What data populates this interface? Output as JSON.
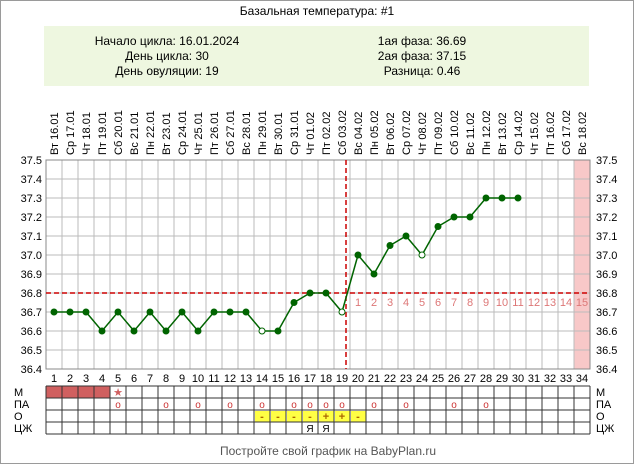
{
  "title": "Базальная температура: #1",
  "info": {
    "cycle_start": "Начало цикла: 16.01.2024",
    "cycle_day": "День цикла: 30",
    "ovulation_day": "День овуляции: 19",
    "phase1": "1ая фаза: 36.69",
    "phase2": "2ая фаза: 37.15",
    "difference": "Разница: 0.46"
  },
  "footer": "Постройте свой график на BabyPlan.ru",
  "colors": {
    "line": "#006400",
    "marker": "#006400",
    "ovulation_line": "#cc0000",
    "coverline": "#cc0000",
    "phase2_numbers": "#dd7777",
    "highlight_column": "#f8c8c8",
    "info_bg": "#eef7e0",
    "menses": "#d06060",
    "mucus_bg": "#ffff44",
    "grid": "#bbbbbb"
  },
  "chart_data": {
    "type": "line",
    "ylim": [
      36.4,
      37.5
    ],
    "yticks": [
      "36.4",
      "36.5",
      "36.6",
      "36.7",
      "36.8",
      "36.9",
      "37.0",
      "37.1",
      "37.2",
      "37.3",
      "37.4",
      "37.5"
    ],
    "coverline": 36.8,
    "ovulation_day": 19,
    "days": [
      1,
      2,
      3,
      4,
      5,
      6,
      7,
      8,
      9,
      10,
      11,
      12,
      13,
      14,
      15,
      16,
      17,
      18,
      19,
      20,
      21,
      22,
      23,
      24,
      25,
      26,
      27,
      28,
      29,
      30,
      31,
      32,
      33,
      34
    ],
    "dates": [
      "Вт 16.01",
      "Ср 17.01",
      "Чт 18.01",
      "Пт 19.01",
      "Сб 20.01",
      "Вс 21.01",
      "Пн 22.01",
      "Вт 23.01",
      "Ср 24.01",
      "Чт 25.01",
      "Пт 26.01",
      "Сб 27.01",
      "Вс 28.01",
      "Пн 29.01",
      "Вт 30.01",
      "Ср 31.01",
      "Чт 01.02",
      "Пт 02.02",
      "Сб 03.02",
      "Вс 04.02",
      "Пн 05.02",
      "Вт 06.02",
      "Ср 07.02",
      "Чт 08.02",
      "Пт 09.02",
      "Сб 10.02",
      "Вс 11.02",
      "Пн 12.02",
      "Вт 13.02",
      "Ср 14.02",
      "Чт 15.02",
      "Пт 16.02",
      "Сб 17.02",
      "Вс 18.02"
    ],
    "temperatures": [
      36.7,
      36.7,
      36.7,
      36.6,
      36.7,
      36.6,
      36.7,
      36.6,
      36.7,
      36.6,
      36.7,
      36.7,
      36.7,
      36.6,
      36.6,
      36.75,
      36.8,
      36.8,
      36.7,
      37.0,
      36.9,
      37.05,
      37.1,
      37.0,
      37.15,
      37.2,
      37.2,
      37.3,
      37.3,
      37.3
    ],
    "open_markers": [
      14,
      19,
      24
    ],
    "highlight_day": 34,
    "phase2_labels": [
      "1",
      "2",
      "3",
      "4",
      "5",
      "6",
      "7",
      "8",
      "9",
      "10",
      "11",
      "12",
      "13",
      "14",
      "15"
    ],
    "phase2_start_day": 20,
    "rows": {
      "labels": [
        "М",
        "ПА",
        "О",
        "ЦЖ"
      ],
      "menses_days": [
        1,
        2,
        3,
        4
      ],
      "menses_star_day": 5,
      "sex_days": [
        5,
        8,
        10,
        12,
        14,
        16,
        17,
        18,
        19,
        21,
        23,
        26,
        28
      ],
      "sex_symbol": "o",
      "ovulation_tests": [
        {
          "day": 14,
          "mark": "-"
        },
        {
          "day": 15,
          "mark": "-"
        },
        {
          "day": 16,
          "mark": "-"
        },
        {
          "day": 17,
          "mark": "-"
        },
        {
          "day": 18,
          "mark": "+"
        },
        {
          "day": 19,
          "mark": "+"
        },
        {
          "day": 20,
          "mark": "-"
        }
      ],
      "mucus": [
        {
          "day": 17,
          "mark": "Я"
        },
        {
          "day": 18,
          "mark": "Я"
        }
      ]
    }
  }
}
